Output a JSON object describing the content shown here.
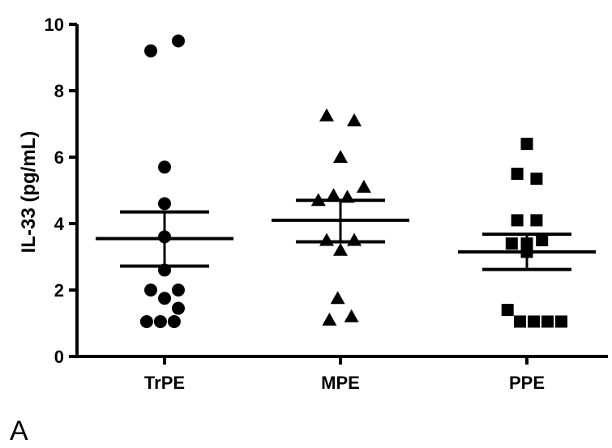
{
  "chart_data": {
    "type": "scatter",
    "title": "",
    "panel_label": "A",
    "xlabel": "",
    "ylabel": "IL-33 (pg/mL)",
    "ylim": [
      0,
      10
    ],
    "yticks": [
      0,
      2,
      4,
      6,
      8,
      10
    ],
    "categories": [
      "TrPE",
      "MPE",
      "PPE"
    ],
    "grid": false,
    "legend": "none",
    "series": [
      {
        "category": "TrPE",
        "marker": "circle",
        "values": [
          9.5,
          9.2,
          5.7,
          4.6,
          3.6,
          2.6,
          2.0,
          2.0,
          1.75,
          1.45,
          1.05,
          1.05,
          1.05
        ],
        "offsets": [
          1,
          -1,
          0,
          0,
          0,
          0,
          -1,
          1,
          0,
          1,
          -1.3,
          -0.3,
          0.7
        ],
        "mean": 3.55,
        "sem_low": 2.72,
        "sem_high": 4.35
      },
      {
        "category": "MPE",
        "marker": "triangle",
        "values": [
          7.25,
          7.1,
          6.0,
          5.1,
          4.85,
          4.8,
          4.7,
          3.5,
          3.5,
          3.2,
          1.75,
          1.2,
          1.1
        ],
        "offsets": [
          -1,
          1,
          0,
          1.7,
          -0.5,
          0.5,
          -1.6,
          -1,
          1,
          0,
          -0.2,
          0.8,
          -0.8
        ],
        "mean": 4.1,
        "sem_low": 3.45,
        "sem_high": 4.7
      },
      {
        "category": "PPE",
        "marker": "square",
        "values": [
          6.4,
          5.5,
          5.35,
          4.1,
          4.1,
          3.5,
          3.4,
          3.4,
          3.15,
          1.4,
          1.05,
          1.05,
          1.05,
          1.05
        ],
        "offsets": [
          0,
          -0.7,
          0.7,
          -0.7,
          0.7,
          1.1,
          0,
          -1.1,
          0,
          -1.4,
          -0.5,
          0.5,
          1.5,
          2.5
        ],
        "mean": 3.15,
        "sem_low": 2.62,
        "sem_high": 3.68
      }
    ]
  }
}
